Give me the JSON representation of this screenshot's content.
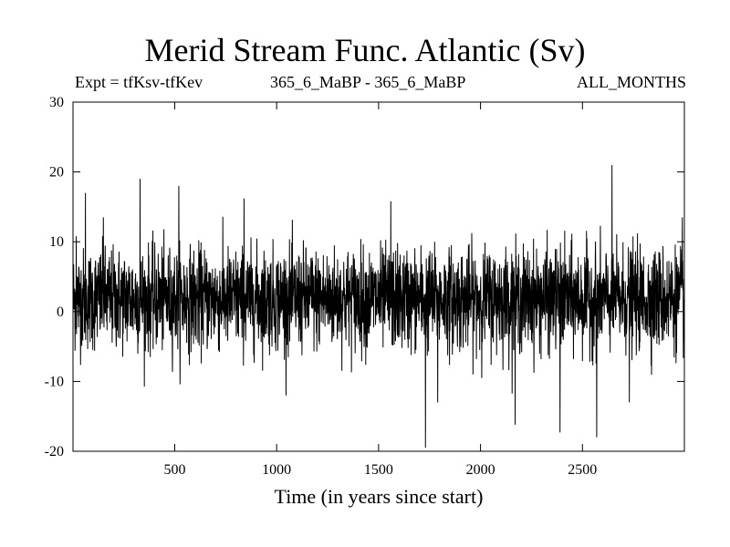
{
  "chart_data": {
    "type": "line",
    "title": "Merid Stream Func. Atlantic (Sv)",
    "subtitle_left": "Expt = tfKsv-tfKev",
    "subtitle_center": "365_6_MaBP - 365_6_MaBP",
    "subtitle_right": "ALL_MONTHS",
    "xlabel": "Time (in years since start)",
    "ylabel": "",
    "xlim": [
      1,
      3000
    ],
    "ylim": [
      -20,
      30
    ],
    "xticks": [
      500,
      1000,
      1500,
      2000,
      2500
    ],
    "yticks": [
      -20,
      -10,
      0,
      10,
      20,
      30
    ],
    "grid": false,
    "legend": "none",
    "series_color": "#000000",
    "series": [
      {
        "n_points": 3000,
        "mean": 1.8,
        "noise_std": 3.6,
        "notable_points": [
          {
            "x": 17,
            "y": 10.8
          },
          {
            "x": 62,
            "y": 17.0
          },
          {
            "x": 150,
            "y": 13.5
          },
          {
            "x": 330,
            "y": 19.0
          },
          {
            "x": 520,
            "y": 18.0
          },
          {
            "x": 840,
            "y": 16.2
          },
          {
            "x": 1560,
            "y": 15.8
          },
          {
            "x": 1730,
            "y": -19.5
          },
          {
            "x": 1790,
            "y": -13.0
          },
          {
            "x": 2170,
            "y": -16.2
          },
          {
            "x": 2390,
            "y": -17.3
          },
          {
            "x": 2570,
            "y": -18.0
          },
          {
            "x": 2645,
            "y": 21.0
          },
          {
            "x": 2730,
            "y": -13.0
          },
          {
            "x": 2990,
            "y": 13.5
          }
        ]
      }
    ]
  }
}
